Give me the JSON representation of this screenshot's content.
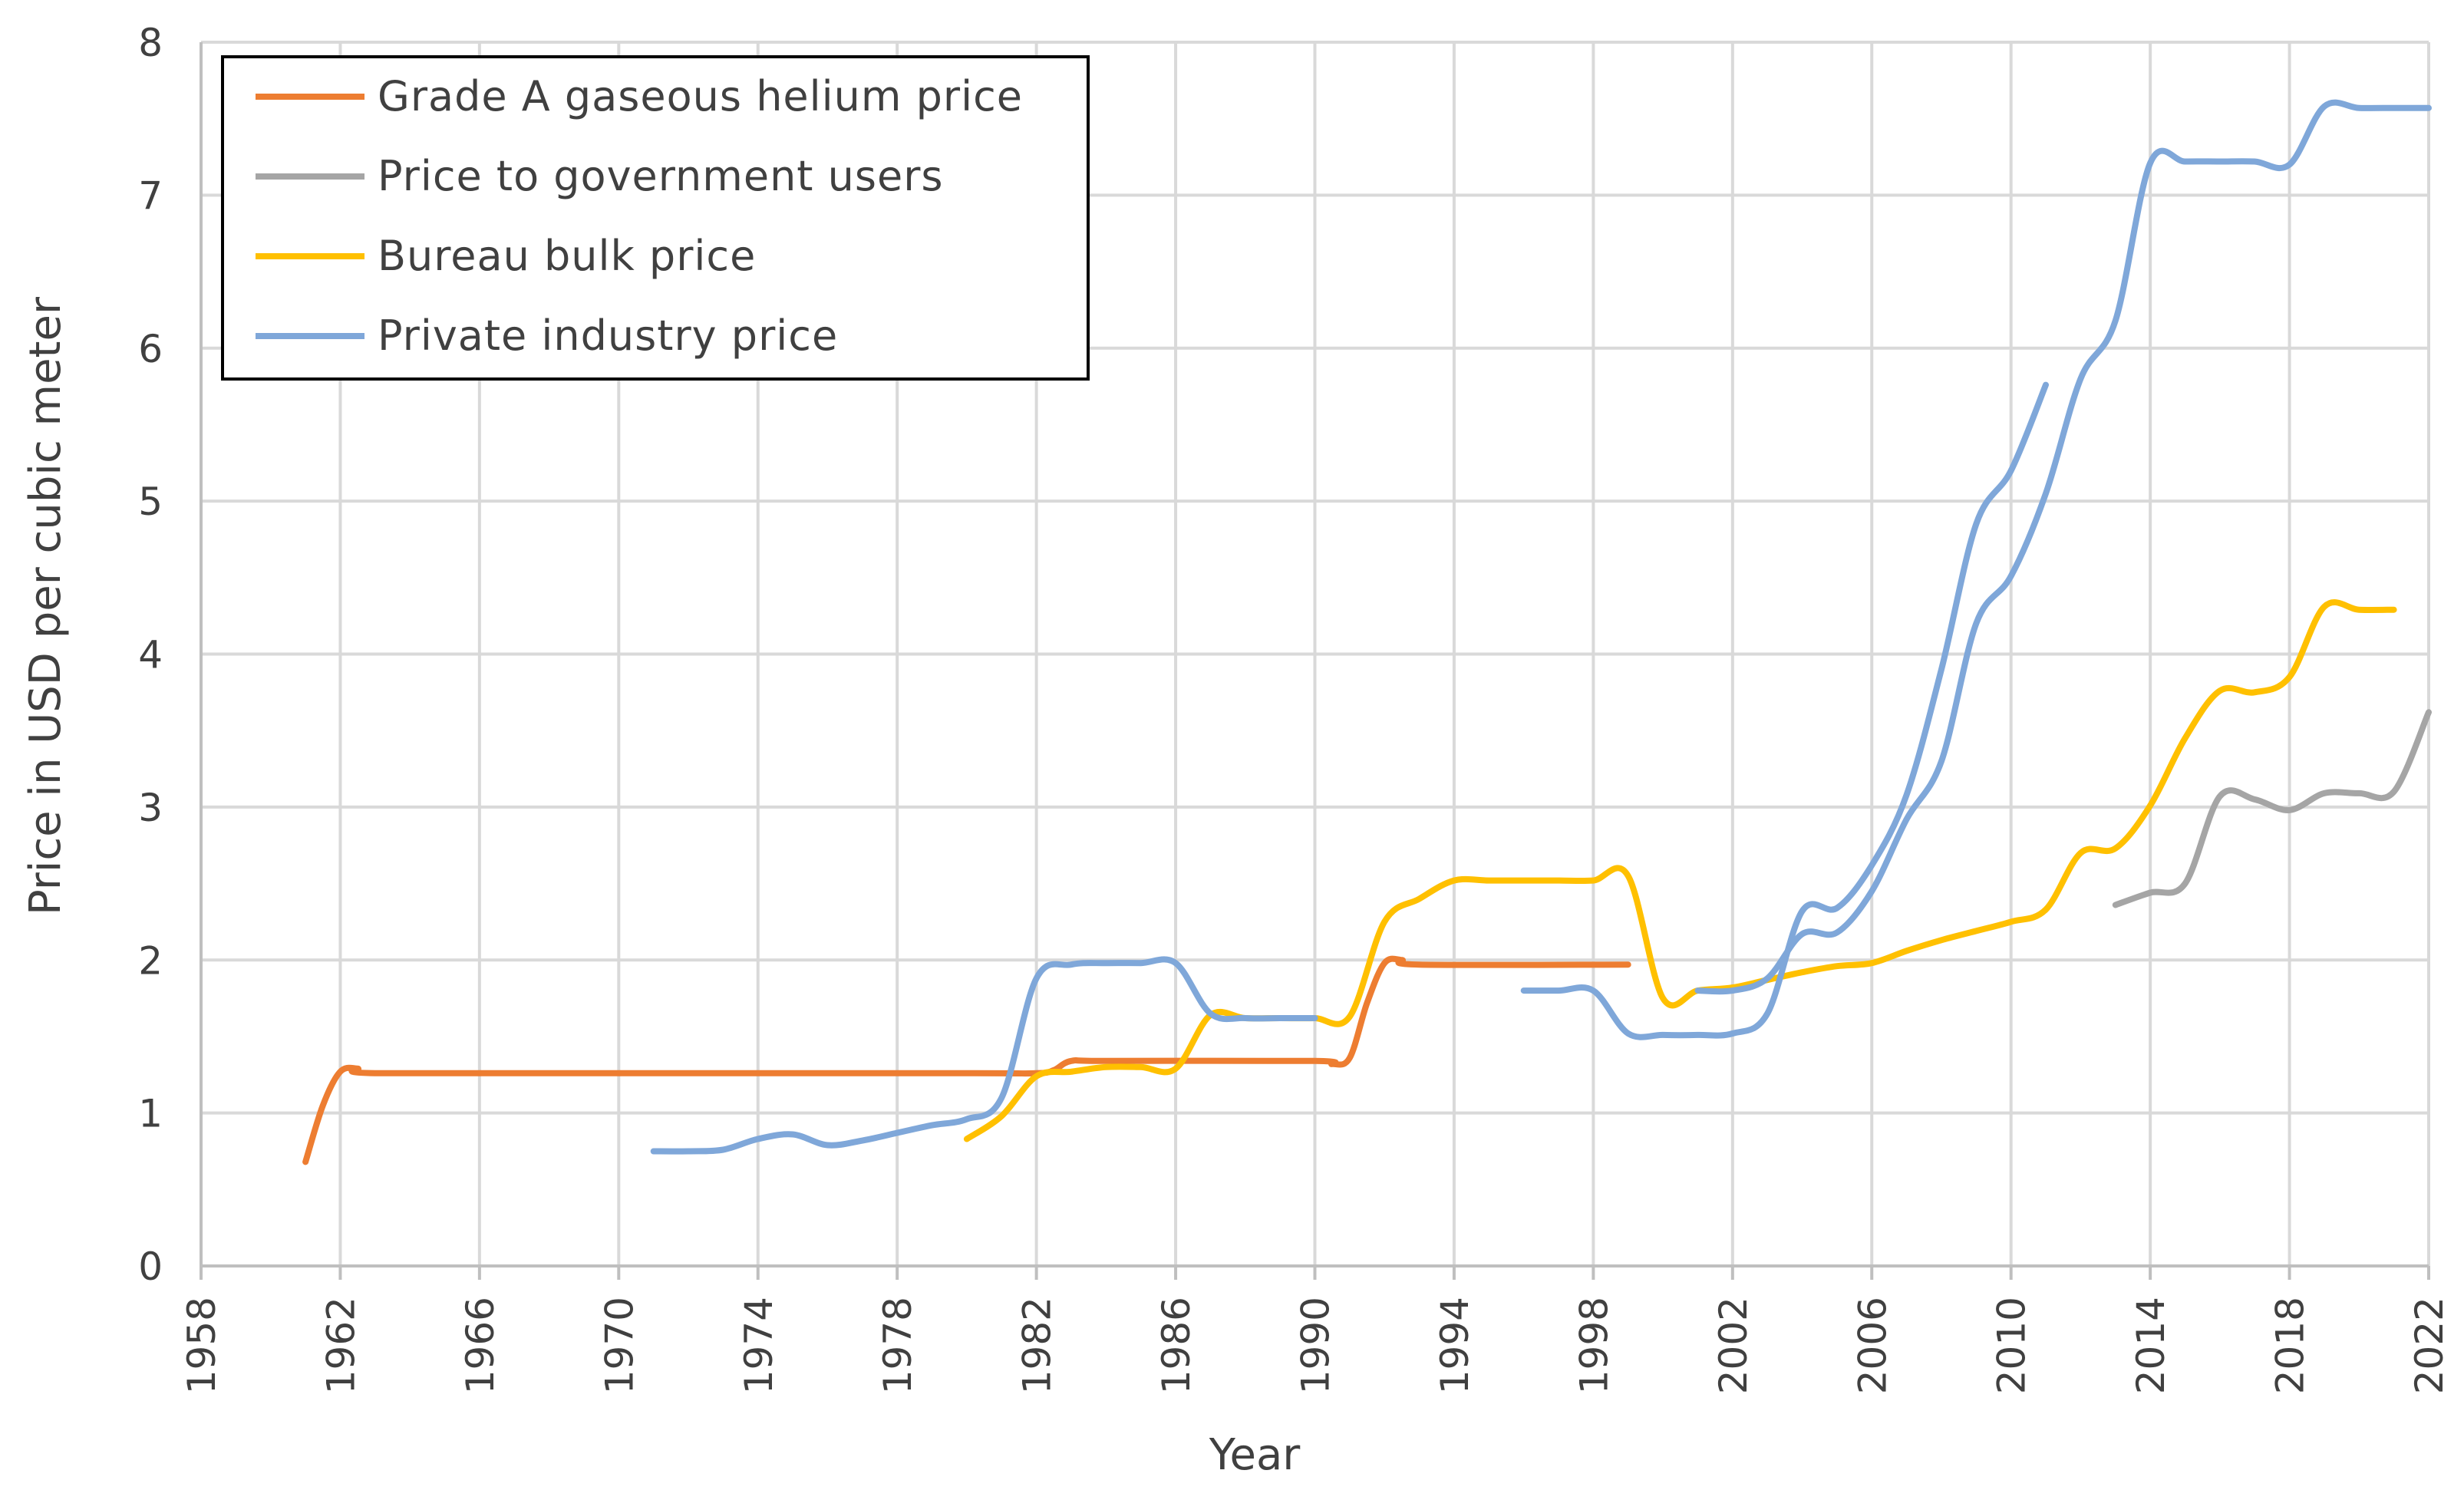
{
  "chart_data": {
    "type": "line",
    "title": "",
    "xlabel": "Year",
    "ylabel": "Price in USD per cubic meter",
    "xlim": [
      1958,
      2022
    ],
    "ylim": [
      0,
      8
    ],
    "x_ticks": [
      "1958",
      "1962",
      "1966",
      "1970",
      "1974",
      "1978",
      "1982",
      "1986",
      "1990",
      "1994",
      "1998",
      "2002",
      "2006",
      "2010",
      "2014",
      "2018",
      "2022"
    ],
    "y_ticks": [
      "0",
      "1",
      "2",
      "3",
      "4",
      "5",
      "6",
      "7",
      "8"
    ],
    "grid": true,
    "legend_position": "top-left",
    "series": [
      {
        "name": "Grade A gaseous helium price",
        "color": "#ED7D31",
        "points": [
          [
            1961,
            0.68
          ],
          [
            1961.5,
            1.05
          ],
          [
            1962,
            1.27
          ],
          [
            1962.5,
            1.29
          ],
          [
            1963,
            1.26
          ],
          [
            1970,
            1.26
          ],
          [
            1980,
            1.26
          ],
          [
            1982,
            1.26
          ],
          [
            1982.5,
            1.28
          ],
          [
            1983,
            1.34
          ],
          [
            1984,
            1.34
          ],
          [
            1990,
            1.34
          ],
          [
            1990.5,
            1.32
          ],
          [
            1991,
            1.36
          ],
          [
            1991.5,
            1.72
          ],
          [
            1992,
            1.98
          ],
          [
            1992.5,
            2.0
          ],
          [
            1993,
            1.97
          ],
          [
            1999,
            1.97
          ]
        ]
      },
      {
        "name": "Price to government users",
        "color": "#A5A5A5",
        "points": [
          [
            2013,
            2.36
          ],
          [
            2014,
            2.44
          ],
          [
            2015,
            2.5
          ],
          [
            2016,
            3.07
          ],
          [
            2017,
            3.05
          ],
          [
            2018,
            2.98
          ],
          [
            2019,
            3.09
          ],
          [
            2020,
            3.09
          ],
          [
            2021,
            3.1
          ],
          [
            2022,
            3.62
          ]
        ]
      },
      {
        "name": "Bureau bulk price",
        "color": "#FFC000",
        "points": [
          [
            1980,
            0.83
          ],
          [
            1981,
            0.98
          ],
          [
            1982,
            1.24
          ],
          [
            1983,
            1.27
          ],
          [
            1984,
            1.3
          ],
          [
            1985,
            1.3
          ],
          [
            1986,
            1.29
          ],
          [
            1987,
            1.64
          ],
          [
            1988,
            1.62
          ],
          [
            1989,
            1.62
          ],
          [
            1990,
            1.62
          ],
          [
            1991,
            1.63
          ],
          [
            1992,
            2.25
          ],
          [
            1993,
            2.4
          ],
          [
            1994,
            2.52
          ],
          [
            1995,
            2.52
          ],
          [
            1996,
            2.52
          ],
          [
            1997,
            2.52
          ],
          [
            1998,
            2.52
          ],
          [
            1999,
            2.55
          ],
          [
            2000,
            1.75
          ],
          [
            2001,
            1.8
          ],
          [
            2002,
            1.82
          ],
          [
            2003,
            1.87
          ],
          [
            2004,
            1.92
          ],
          [
            2005,
            1.96
          ],
          [
            2006,
            1.98
          ],
          [
            2007,
            2.06
          ],
          [
            2008,
            2.13
          ],
          [
            2009,
            2.19
          ],
          [
            2010,
            2.25
          ],
          [
            2011,
            2.33
          ],
          [
            2012,
            2.7
          ],
          [
            2013,
            2.73
          ],
          [
            2014,
            3.01
          ],
          [
            2015,
            3.45
          ],
          [
            2016,
            3.76
          ],
          [
            2017,
            3.75
          ],
          [
            2018,
            3.85
          ],
          [
            2019,
            4.31
          ],
          [
            2020,
            4.29
          ],
          [
            2021,
            4.29
          ]
        ]
      },
      {
        "name": "Private industry price",
        "color": "#7FA7D9",
        "segments": [
          [
            [
              1971,
              0.75
            ],
            [
              1972,
              0.75
            ],
            [
              1973,
              0.76
            ],
            [
              1974,
              0.83
            ],
            [
              1975,
              0.86
            ],
            [
              1976,
              0.79
            ],
            [
              1977,
              0.82
            ],
            [
              1978,
              0.87
            ],
            [
              1979,
              0.92
            ],
            [
              1980,
              0.96
            ],
            [
              1981,
              1.1
            ],
            [
              1982,
              1.88
            ],
            [
              1983,
              1.97
            ],
            [
              1984,
              1.98
            ],
            [
              1985,
              1.98
            ],
            [
              1986,
              1.98
            ],
            [
              1987,
              1.65
            ],
            [
              1988,
              1.62
            ],
            [
              1989,
              1.62
            ],
            [
              1990,
              1.62
            ]
          ],
          [
            [
              1996,
              1.8
            ],
            [
              1997,
              1.8
            ],
            [
              1998,
              1.8
            ],
            [
              1999,
              1.52
            ],
            [
              2000,
              1.51
            ],
            [
              2001,
              1.51
            ],
            [
              2002,
              1.52
            ],
            [
              2003,
              1.65
            ],
            [
              2004,
              2.32
            ],
            [
              2005,
              2.34
            ],
            [
              2006,
              2.62
            ],
            [
              2007,
              3.08
            ],
            [
              2008,
              3.9
            ],
            [
              2009,
              4.85
            ],
            [
              2010,
              5.2
            ],
            [
              2011,
              5.76
            ]
          ],
          [
            [
              2001,
              1.8
            ],
            [
              2002,
              1.8
            ],
            [
              2003,
              1.88
            ],
            [
              2004,
              2.17
            ],
            [
              2005,
              2.18
            ],
            [
              2006,
              2.45
            ],
            [
              2007,
              2.92
            ],
            [
              2008,
              3.3
            ],
            [
              2009,
              4.2
            ],
            [
              2010,
              4.51
            ],
            [
              2011,
              5.05
            ],
            [
              2012,
              5.8
            ],
            [
              2013,
              6.18
            ],
            [
              2014,
              7.21
            ],
            [
              2015,
              7.22
            ],
            [
              2016,
              7.22
            ],
            [
              2017,
              7.22
            ],
            [
              2018,
              7.2
            ],
            [
              2019,
              7.58
            ],
            [
              2020,
              7.57
            ],
            [
              2021,
              7.57
            ],
            [
              2022,
              7.57
            ]
          ]
        ]
      }
    ]
  }
}
